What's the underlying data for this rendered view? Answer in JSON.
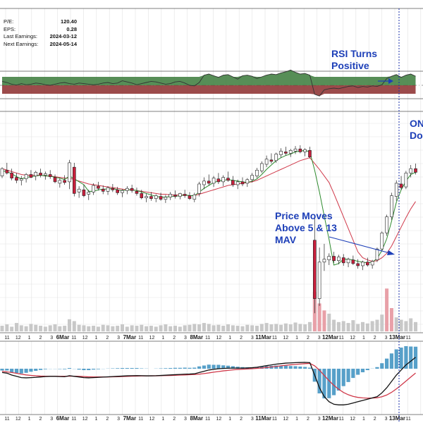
{
  "stats": [
    {
      "label": "P/E:",
      "value": "120.40"
    },
    {
      "label": "EPS:",
      "value": "0.28"
    },
    {
      "label": "Last Earnings:",
      "value": "2024-03-12"
    },
    {
      "label": "Next Earnings:",
      "value": "2024-05-14"
    }
  ],
  "annotations": {
    "rsi": "RSI Turns\nPositive",
    "price": "Price Moves\nAbove 5 & 13\nMAV",
    "on": "ON\nDo"
  },
  "colors": {
    "up": "#ffffff",
    "down": "#c8203c",
    "candle_outline": "#222222",
    "ma_fast": "#2e8b2e",
    "ma_slow": "#d0394a",
    "rsi_line": "#333333",
    "rsi_pos": "#3a7a3a",
    "rsi_neg": "#8b2c2c",
    "macd": "#111111",
    "signal": "#d0394a",
    "hist": "#3a8fbf",
    "volume": "#c8c8c8",
    "volume_hi": "#e8a0a8",
    "annotation": "#1d3fb8",
    "grid": "#e2e2e2",
    "marker": "#1a2fa8"
  },
  "chart_data": {
    "type": "line",
    "x_axis_labels": [
      "11",
      "12",
      "1",
      "2",
      "3",
      "6Mar",
      "11",
      "12",
      "1",
      "2",
      "3",
      "7Mar",
      "11",
      "12",
      "1",
      "2",
      "3",
      "8Mar",
      "11",
      "12",
      "1",
      "2",
      "3",
      "11Mar",
      "11",
      "12",
      "1",
      "2",
      "3",
      "12Mar",
      "11",
      "12",
      "1",
      "2",
      "3",
      "13Mar",
      "11"
    ],
    "rsi_line": [
      0.35,
      0.25,
      0.1,
      0.02,
      0.15,
      0.05,
      0.1,
      0.2,
      0.15,
      0.05,
      0.0,
      0.1,
      0.2,
      0.25,
      0.15,
      0.1,
      0.2,
      0.15,
      0.1,
      0.05,
      0.1,
      0.2,
      0.25,
      0.15,
      0.2,
      0.4,
      0.3,
      0.2,
      0.05,
      0.15,
      0.25,
      0.35,
      0.3,
      0.2,
      0.1,
      0.15,
      0.3,
      0.35,
      0.2,
      0.0,
      -0.05,
      0.25,
      0.9,
      1.0,
      0.85,
      0.7,
      0.9,
      0.95,
      0.75,
      0.55,
      0.85,
      0.9,
      0.8,
      0.6,
      0.75,
      0.9,
      1.0,
      0.95,
      1.1,
      1.2,
      1.35,
      1.15,
      1.0,
      1.05,
      0.9,
      -0.8,
      -0.95,
      -0.4,
      -0.3,
      -0.25,
      -0.3,
      -0.2,
      -0.1,
      -0.05,
      -0.2,
      -0.1,
      -0.15,
      -0.05,
      -0.1,
      0.05,
      0.6,
      0.8,
      0.95,
      0.7,
      0.9,
      1.0,
      0.8
    ],
    "candles": [
      [
        40.8,
        42,
        40.5,
        41.8
      ],
      [
        41.6,
        42.6,
        41,
        41.2
      ],
      [
        41.2,
        41.8,
        40.2,
        40.5
      ],
      [
        40.6,
        41.2,
        39.8,
        40.2
      ],
      [
        40.2,
        40.8,
        39.5,
        40.4
      ],
      [
        40.4,
        41.2,
        39.9,
        41
      ],
      [
        41,
        41.6,
        40.5,
        40.6
      ],
      [
        40.8,
        41.5,
        40.2,
        41.3
      ],
      [
        41.2,
        41.8,
        40.6,
        40.9
      ],
      [
        40.9,
        41.4,
        40.3,
        41.1
      ],
      [
        41,
        41.6,
        40.4,
        40.7
      ],
      [
        40.6,
        41,
        39.8,
        40
      ],
      [
        39.8,
        40.5,
        39.2,
        40.2
      ],
      [
        40.2,
        40.9,
        39.6,
        39.9
      ],
      [
        40,
        43,
        39,
        42.6
      ],
      [
        42,
        42.6,
        38,
        38.4
      ],
      [
        38.6,
        39.4,
        37.8,
        39
      ],
      [
        38.9,
        39.6,
        37.9,
        38.1
      ],
      [
        38.3,
        38.9,
        37.5,
        38.6
      ],
      [
        38.6,
        39.8,
        38.2,
        39.5
      ],
      [
        39.4,
        40,
        38.8,
        39.1
      ],
      [
        39,
        39.5,
        38.3,
        38.7
      ],
      [
        38.7,
        39.4,
        38.2,
        39.2
      ],
      [
        39.1,
        39.7,
        38.6,
        38.9
      ],
      [
        38.9,
        39.3,
        38.2,
        38.5
      ],
      [
        38.5,
        39,
        37.9,
        38.8
      ],
      [
        38.8,
        39.4,
        38.3,
        39.1
      ],
      [
        39.1,
        39.6,
        38.5,
        38.8
      ],
      [
        38.7,
        39.2,
        38.1,
        38.4
      ],
      [
        38.4,
        38.9,
        37.6,
        37.8
      ],
      [
        37.8,
        38.4,
        37.2,
        38
      ],
      [
        38,
        38.6,
        37.4,
        37.7
      ],
      [
        37.7,
        38.3,
        37.2,
        38.1
      ],
      [
        38,
        38.5,
        37.4,
        37.6
      ],
      [
        37.6,
        38.2,
        37.1,
        37.9
      ],
      [
        37.9,
        38.6,
        37.5,
        38.3
      ],
      [
        38.2,
        38.8,
        37.7,
        38
      ],
      [
        38,
        38.5,
        37.6,
        38.4
      ],
      [
        38.3,
        38.9,
        37.8,
        38.1
      ],
      [
        38.1,
        38.6,
        37.5,
        37.7
      ],
      [
        37.6,
        38.5,
        37.2,
        38.2
      ],
      [
        38.4,
        40,
        38,
        39.7
      ],
      [
        39.6,
        40.6,
        39,
        40.1
      ],
      [
        40.1,
        41,
        39.5,
        39.8
      ],
      [
        39.8,
        40.8,
        39.3,
        40.5
      ],
      [
        40.4,
        41.2,
        39.7,
        40
      ],
      [
        40,
        40.9,
        39.4,
        40.6
      ],
      [
        40.5,
        41.4,
        40,
        40.2
      ],
      [
        40.2,
        40.8,
        39.3,
        39.6
      ],
      [
        39.6,
        40.3,
        39,
        40
      ],
      [
        40,
        40.6,
        39.4,
        39.7
      ],
      [
        39.8,
        40.5,
        39.3,
        40.3
      ],
      [
        40.3,
        41.2,
        39.9,
        40.9
      ],
      [
        40.8,
        41.9,
        40.5,
        41.6
      ],
      [
        41.5,
        42.8,
        41.2,
        42.5
      ],
      [
        42.4,
        43.6,
        42,
        43.1
      ],
      [
        43,
        43.9,
        42.5,
        42.8
      ],
      [
        42.9,
        44,
        42.6,
        43.8
      ],
      [
        43.7,
        44.6,
        43.3,
        44.2
      ],
      [
        44.1,
        44.8,
        43.6,
        43.9
      ],
      [
        43.9,
        44.5,
        43.4,
        44.3
      ],
      [
        44.2,
        44.9,
        43.8,
        44.5
      ],
      [
        44.5,
        45,
        43.9,
        44.1
      ],
      [
        44.1,
        44.6,
        43.5,
        44.4
      ],
      [
        44.3,
        44.8,
        43.2,
        43.4
      ],
      [
        32,
        35,
        22,
        24
      ],
      [
        24,
        31,
        23,
        29
      ],
      [
        29,
        31.5,
        27.8,
        29.4
      ],
      [
        29.3,
        30.2,
        28.6,
        29.8
      ],
      [
        29.8,
        30.4,
        28.9,
        29.2
      ],
      [
        29.2,
        30,
        28.7,
        29.7
      ],
      [
        29.6,
        30.1,
        28.5,
        28.9
      ],
      [
        28.9,
        29.6,
        28.3,
        29.4
      ],
      [
        29.3,
        29.9,
        28.6,
        28.8
      ],
      [
        28.8,
        29.4,
        28.1,
        28.5
      ],
      [
        28.5,
        29.2,
        27.9,
        29
      ],
      [
        29,
        29.6,
        28.4,
        28.6
      ],
      [
        28.6,
        29.3,
        28.1,
        29.1
      ],
      [
        29.3,
        31,
        29,
        30.8
      ],
      [
        30.8,
        33.2,
        30.5,
        33
      ],
      [
        33,
        35.5,
        32.6,
        35.2
      ],
      [
        35.2,
        38.5,
        34.8,
        38.1
      ],
      [
        38,
        40.2,
        37.4,
        39.8
      ],
      [
        39.7,
        40.8,
        38.9,
        39.2
      ],
      [
        39.3,
        41.5,
        39,
        41.2
      ],
      [
        41.2,
        42.3,
        40.6,
        41.8
      ],
      [
        41.8,
        42.5,
        41,
        41.3
      ]
    ],
    "volume": [
      1.2,
      1.5,
      1,
      1.8,
      1.3,
      1.1,
      1.6,
      1.4,
      1.2,
      1,
      1.3,
      1.5,
      1.1,
      1.2,
      2.6,
      2.2,
      1.4,
      1.3,
      1.1,
      1.2,
      1,
      1.4,
      1.3,
      1.1,
      1.2,
      1.5,
      1,
      1.3,
      1.2,
      1.4,
      1.1,
      1.2,
      1,
      1.3,
      1.5,
      1.1,
      1.2,
      1,
      1.3,
      1.4,
      1.6,
      1.5,
      1.8,
      1.6,
      1.3,
      1.4,
      1.2,
      1.5,
      1.3,
      1.2,
      1.1,
      1.4,
      1.3,
      1.2,
      1.6,
      1.8,
      1.5,
      1.6,
      1.4,
      1.7,
      1.5,
      1.9,
      1.6,
      1.5,
      2,
      8.5,
      6,
      4.5,
      3.8,
      2.5,
      2,
      2.2,
      1.8,
      2.4,
      1.6,
      2,
      1.7,
      2.2,
      2.5,
      3.6,
      9.2,
      5,
      3,
      2.5,
      2.2,
      2.8,
      2
    ],
    "ma_fast": [
      41.5,
      41.4,
      41.1,
      40.7,
      40.4,
      40.6,
      40.7,
      40.8,
      40.9,
      40.8,
      40.8,
      40.6,
      40.5,
      40.3,
      40.8,
      40.4,
      40,
      39.6,
      38.7,
      38.7,
      38.9,
      39,
      39,
      39.1,
      38.9,
      38.8,
      38.9,
      38.9,
      38.8,
      38.6,
      38.4,
      38.2,
      38,
      37.9,
      37.9,
      38,
      38,
      38.1,
      38.2,
      38.1,
      38.1,
      38.6,
      39.1,
      39.5,
      39.9,
      40.1,
      40.2,
      40.3,
      40.2,
      40.1,
      40,
      39.9,
      40.1,
      40.4,
      41,
      41.7,
      42.3,
      42.9,
      43.3,
      43.6,
      43.8,
      44.1,
      44.2,
      44.3,
      44.1,
      41.6,
      38.6,
      35.3,
      32.1,
      28.6,
      28.8,
      29.4,
      29.4,
      29.3,
      29.1,
      29,
      28.9,
      29,
      29.5,
      30.6,
      32.2,
      34.6,
      37.2,
      38.9,
      40.1,
      41,
      41.3
    ],
    "ma_slow": [
      41.8,
      41.6,
      41.4,
      41.2,
      41,
      40.9,
      40.9,
      40.9,
      40.9,
      40.8,
      40.8,
      40.7,
      40.6,
      40.5,
      40.5,
      40.3,
      40.1,
      39.9,
      39.7,
      39.6,
      39.5,
      39.4,
      39.3,
      39.2,
      39.1,
      39,
      38.9,
      38.9,
      38.8,
      38.7,
      38.6,
      38.5,
      38.4,
      38.3,
      38.3,
      38.2,
      38.2,
      38.2,
      38.2,
      38.1,
      38.1,
      38.3,
      38.5,
      38.7,
      38.9,
      39.1,
      39.3,
      39.5,
      39.6,
      39.7,
      39.8,
      39.9,
      40,
      40.2,
      40.5,
      40.8,
      41.1,
      41.4,
      41.7,
      42,
      42.3,
      42.6,
      42.9,
      43.1,
      43.3,
      42.5,
      41.7,
      40.8,
      39.9,
      38.4,
      36.8,
      35.2,
      33.6,
      32,
      30.4,
      29.6,
      29.3,
      29.1,
      29.2,
      29.6,
      30.2,
      31.2,
      32.5,
      33.8,
      35.1,
      36.3,
      37.3
    ],
    "macd": [
      -0.3,
      -0.35,
      -0.5,
      -0.6,
      -0.7,
      -0.72,
      -0.7,
      -0.68,
      -0.65,
      -0.62,
      -0.6,
      -0.6,
      -0.62,
      -0.63,
      -0.55,
      -0.6,
      -0.65,
      -0.7,
      -0.72,
      -0.7,
      -0.68,
      -0.66,
      -0.64,
      -0.62,
      -0.6,
      -0.58,
      -0.56,
      -0.55,
      -0.54,
      -0.55,
      -0.56,
      -0.56,
      -0.55,
      -0.53,
      -0.51,
      -0.49,
      -0.47,
      -0.45,
      -0.43,
      -0.42,
      -0.4,
      -0.3,
      -0.2,
      -0.1,
      -0.05,
      0,
      0.02,
      0.04,
      0.05,
      0.05,
      0.05,
      0.06,
      0.08,
      0.12,
      0.18,
      0.24,
      0.3,
      0.36,
      0.4,
      0.44,
      0.46,
      0.48,
      0.49,
      0.5,
      0.48,
      -0.5,
      -1.5,
      -2.2,
      -2.6,
      -2.8,
      -2.85,
      -2.85,
      -2.8,
      -2.7,
      -2.6,
      -2.5,
      -2.4,
      -2.3,
      -2.2,
      -1.9,
      -1.5,
      -1,
      -0.5,
      -0.1,
      0.3,
      0.6,
      0.9
    ],
    "signal": [
      -0.2,
      -0.25,
      -0.3,
      -0.36,
      -0.43,
      -0.49,
      -0.53,
      -0.56,
      -0.58,
      -0.59,
      -0.59,
      -0.59,
      -0.6,
      -0.6,
      -0.59,
      -0.59,
      -0.6,
      -0.62,
      -0.64,
      -0.65,
      -0.65,
      -0.65,
      -0.65,
      -0.64,
      -0.63,
      -0.62,
      -0.6,
      -0.59,
      -0.58,
      -0.57,
      -0.57,
      -0.56,
      -0.56,
      -0.55,
      -0.54,
      -0.53,
      -0.52,
      -0.5,
      -0.49,
      -0.47,
      -0.46,
      -0.43,
      -0.38,
      -0.33,
      -0.27,
      -0.22,
      -0.17,
      -0.13,
      -0.09,
      -0.06,
      -0.04,
      -0.02,
      0,
      0.03,
      0.06,
      0.1,
      0.14,
      0.18,
      0.23,
      0.27,
      0.31,
      0.34,
      0.37,
      0.4,
      0.42,
      0.23,
      -0.11,
      -0.53,
      -0.94,
      -1.31,
      -1.62,
      -1.87,
      -2.05,
      -2.18,
      -2.26,
      -2.3,
      -2.32,
      -2.31,
      -2.29,
      -2.21,
      -2.07,
      -1.86,
      -1.59,
      -1.29,
      -0.97,
      -0.65,
      -0.34
    ]
  }
}
